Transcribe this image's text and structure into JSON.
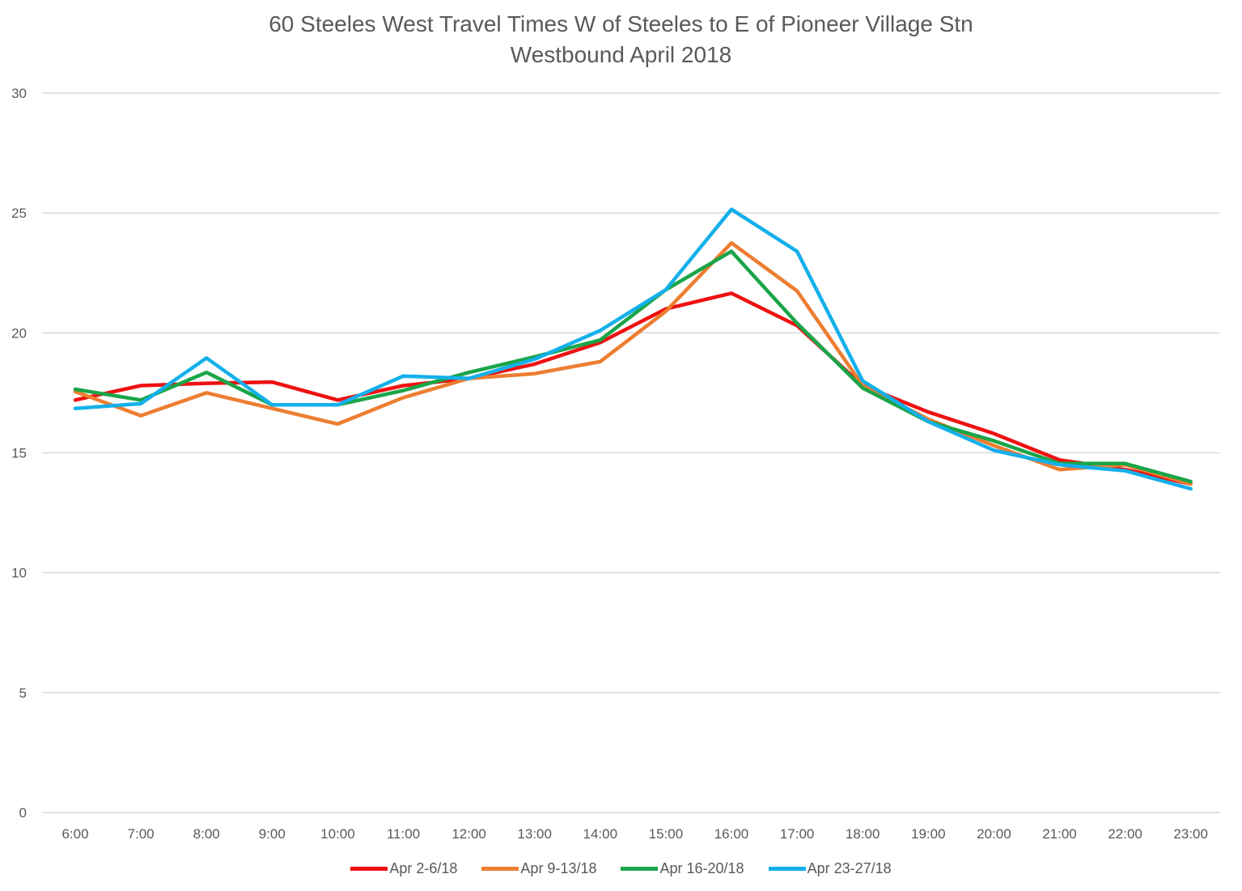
{
  "chart_data": {
    "type": "line",
    "title": "60 Steeles West Travel Times W of Steeles to E of Pioneer Village Stn",
    "subtitle": "Westbound  April 2018",
    "xlabel": "",
    "ylabel": "",
    "ylim": [
      0,
      30
    ],
    "yticks": [
      0,
      5,
      10,
      15,
      20,
      25,
      30
    ],
    "grid": true,
    "legend_position": "bottom",
    "categories": [
      "6:00",
      "7:00",
      "8:00",
      "9:00",
      "10:00",
      "11:00",
      "12:00",
      "13:00",
      "14:00",
      "15:00",
      "16:00",
      "17:00",
      "18:00",
      "19:00",
      "20:00",
      "21:00",
      "22:00",
      "23:00"
    ],
    "series": [
      {
        "name": "Apr 2-6/18",
        "color": "#ee1111",
        "values": [
          17.2,
          17.8,
          17.9,
          17.95,
          17.2,
          17.8,
          18.1,
          18.7,
          19.6,
          21.0,
          21.65,
          20.3,
          17.8,
          16.7,
          15.8,
          14.7,
          14.3,
          13.7
        ]
      },
      {
        "name": "Apr 9-13/18",
        "color": "#ed7d31",
        "values": [
          17.55,
          16.55,
          17.5,
          16.85,
          16.2,
          17.3,
          18.1,
          18.3,
          18.8,
          20.9,
          23.75,
          21.75,
          17.8,
          16.4,
          15.3,
          14.3,
          14.5,
          13.7
        ]
      },
      {
        "name": "Apr 16-20/18",
        "color": "#1aa548",
        "values": [
          17.65,
          17.2,
          18.35,
          17.0,
          17.0,
          17.6,
          18.35,
          19.0,
          19.7,
          21.8,
          23.4,
          20.4,
          17.7,
          16.3,
          15.5,
          14.55,
          14.55,
          13.8
        ]
      },
      {
        "name": "Apr 23-27/18",
        "color": "#14b0ea",
        "values": [
          16.85,
          17.05,
          18.95,
          17.0,
          17.0,
          18.2,
          18.1,
          18.9,
          20.1,
          21.8,
          25.15,
          23.4,
          18.0,
          16.3,
          15.1,
          14.5,
          14.25,
          13.5
        ]
      }
    ]
  }
}
